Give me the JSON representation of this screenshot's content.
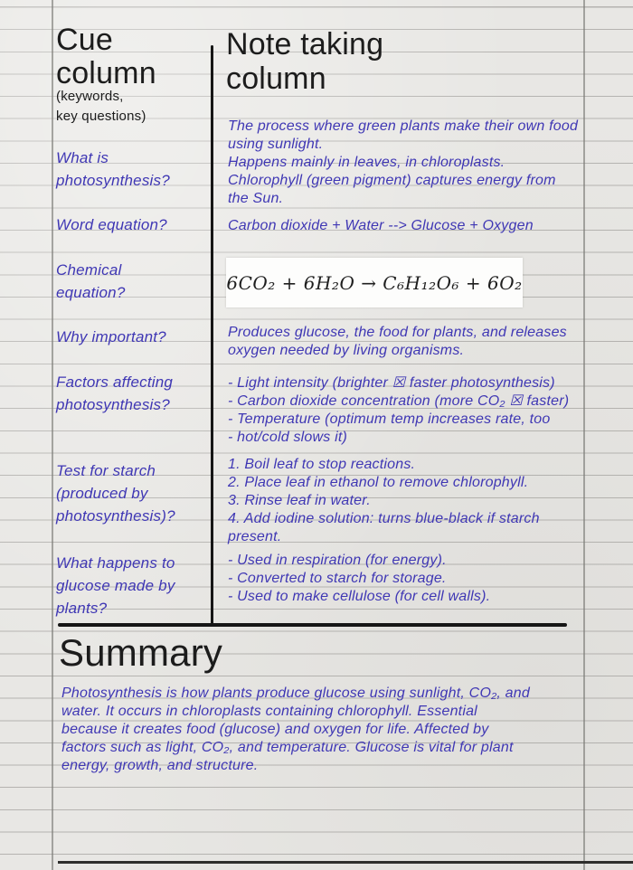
{
  "colors": {
    "paper": "#e8e7e4",
    "rule_line": "#8a8985",
    "ink_black": "#1c1c1c",
    "ink_blue": "#3f37b4",
    "equation_box": "#fdfdfc"
  },
  "header": {
    "cue_title": "Cue\ncolumn",
    "cue_subtitle": "(keywords,\nkey questions)",
    "note_title": "Note taking\ncolumn"
  },
  "sections": [
    {
      "cue": "What is\nphotosynthesis?",
      "note": "The process where green plants make their own food\nusing sunlight.\nHappens mainly in leaves, in chloroplasts.\nChlorophyll (green pigment) captures energy from\nthe Sun."
    },
    {
      "cue": "Word equation?",
      "note": "Carbon dioxide + Water --> Glucose + Oxygen"
    },
    {
      "cue": "Chemical\nequation?",
      "note": "6CO₂ + 6H₂O → C₆H₁₂O₆ + 6O₂"
    },
    {
      "cue": "Why important?",
      "note": "Produces glucose, the food for plants, and releases\noxygen needed by living organisms."
    },
    {
      "cue": "Factors affecting\nphotosynthesis?",
      "note": "- Light intensity (brighter ☒ faster photosynthesis)\n- Carbon dioxide concentration (more CO₂ ☒ faster)\n- Temperature (optimum temp increases rate, too\n- hot/cold slows it)"
    },
    {
      "cue": "Test for starch\n(produced by\nphotosynthesis)?",
      "note": "1. Boil leaf to stop reactions.\n2. Place leaf in ethanol to remove chlorophyll.\n3. Rinse leaf in water.\n4. Add iodine solution: turns blue-black if starch\npresent."
    },
    {
      "cue": "What happens to\nglucose made by\nplants?",
      "note": "- Used in respiration (for energy).\n- Converted to starch for storage.\n- Used to make cellulose (for cell walls)."
    }
  ],
  "summary": {
    "title": "Summary",
    "text": "Photosynthesis is how plants produce glucose using sunlight, CO₂, and\nwater. It occurs in chloroplasts containing chlorophyll. Essential\nbecause it creates food (glucose) and oxygen for life. Affected by\nfactors such as light, CO₂, and temperature. Glucose is vital for plant\nenergy, growth, and structure."
  }
}
